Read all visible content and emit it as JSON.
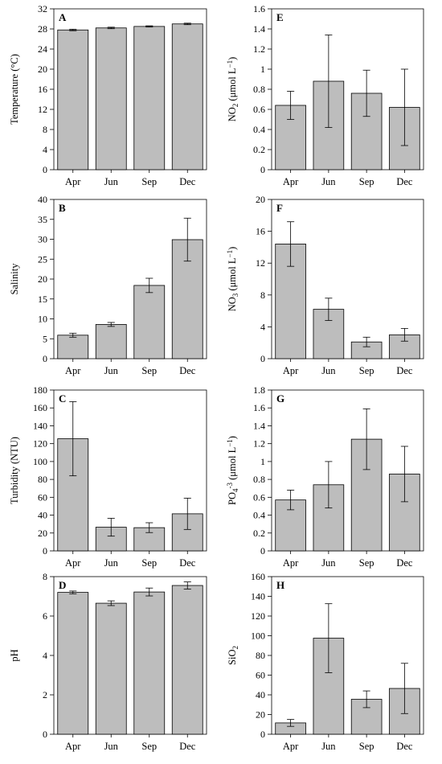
{
  "categories": [
    "Apr",
    "Jun",
    "Sep",
    "Dec"
  ],
  "chart_data": [
    {
      "type": "bar",
      "panel": "A",
      "title": "",
      "xlabel": "",
      "ylabel": "Temperature (°C)",
      "ylim": [
        0,
        32
      ],
      "yticks": [
        0,
        4,
        8,
        12,
        16,
        20,
        24,
        28,
        32
      ],
      "categories": [
        "Apr",
        "Jun",
        "Sep",
        "Dec"
      ],
      "values": [
        27.8,
        28.2,
        28.5,
        29.0
      ],
      "errors": [
        0.15,
        0.15,
        0.12,
        0.15
      ]
    },
    {
      "type": "bar",
      "panel": "B",
      "title": "",
      "xlabel": "",
      "ylabel": "Salinity",
      "ylim": [
        0,
        40
      ],
      "yticks": [
        0,
        5,
        10,
        15,
        20,
        25,
        30,
        35,
        40
      ],
      "categories": [
        "Apr",
        "Jun",
        "Sep",
        "Dec"
      ],
      "values": [
        5.9,
        8.6,
        18.4,
        29.9
      ],
      "errors": [
        0.5,
        0.5,
        1.8,
        5.4
      ]
    },
    {
      "type": "bar",
      "panel": "C",
      "title": "",
      "xlabel": "",
      "ylabel": "Turbidity (NTU)",
      "ylim": [
        0,
        180
      ],
      "yticks": [
        0,
        20,
        40,
        60,
        80,
        100,
        120,
        140,
        160,
        180
      ],
      "categories": [
        "Apr",
        "Jun",
        "Sep",
        "Dec"
      ],
      "values": [
        125.5,
        26.5,
        26.0,
        41.5
      ],
      "errors": [
        41.5,
        10.0,
        5.5,
        17.5
      ]
    },
    {
      "type": "bar",
      "panel": "D",
      "title": "",
      "xlabel": "",
      "ylabel": "pH",
      "ylim": [
        0,
        8
      ],
      "yticks": [
        0,
        2,
        4,
        6,
        8
      ],
      "categories": [
        "Apr",
        "Jun",
        "Sep",
        "Dec"
      ],
      "values": [
        7.2,
        6.65,
        7.22,
        7.55
      ],
      "errors": [
        0.07,
        0.12,
        0.2,
        0.18
      ]
    },
    {
      "type": "bar",
      "panel": "E",
      "title": "",
      "xlabel": "",
      "ylabel": "NO",
      "ylabel_sub": "2",
      "ylabel_rest": " (μmol L",
      "ylabel_sup": "−1",
      "ylabel_end": ")",
      "ylim": [
        0,
        1.6
      ],
      "yticks": [
        0,
        0.2,
        0.4,
        0.6,
        0.8,
        1,
        1.2,
        1.4,
        1.6
      ],
      "categories": [
        "Apr",
        "Jun",
        "Sep",
        "Dec"
      ],
      "values": [
        0.64,
        0.88,
        0.76,
        0.62
      ],
      "errors": [
        0.14,
        0.46,
        0.23,
        0.38
      ]
    },
    {
      "type": "bar",
      "panel": "F",
      "title": "",
      "xlabel": "",
      "ylabel": "NO",
      "ylabel_sub": "3",
      "ylabel_rest": " (μmol L",
      "ylabel_sup": "−1",
      "ylabel_end": ")",
      "ylim": [
        0,
        20
      ],
      "yticks": [
        0,
        4,
        8,
        12,
        16,
        20
      ],
      "categories": [
        "Apr",
        "Jun",
        "Sep",
        "Dec"
      ],
      "values": [
        14.4,
        6.2,
        2.1,
        3.0
      ],
      "errors": [
        2.8,
        1.4,
        0.6,
        0.8
      ]
    },
    {
      "type": "bar",
      "panel": "G",
      "title": "",
      "xlabel": "",
      "ylabel": "PO",
      "ylabel_sub": "4",
      "ylabel_sup0": "-3",
      "ylabel_rest": " (μmol L",
      "ylabel_sup": "−1",
      "ylabel_end": ")",
      "ylim": [
        0,
        1.8
      ],
      "yticks": [
        0,
        0.2,
        0.4,
        0.6,
        0.8,
        1,
        1.2,
        1.4,
        1.6,
        1.8
      ],
      "categories": [
        "Apr",
        "Jun",
        "Sep",
        "Dec"
      ],
      "values": [
        0.57,
        0.74,
        1.25,
        0.86
      ],
      "errors": [
        0.11,
        0.26,
        0.34,
        0.31
      ]
    },
    {
      "type": "bar",
      "panel": "H",
      "title": "",
      "xlabel": "",
      "ylabel": "SiO",
      "ylabel_sub": "2",
      "ylim": [
        0,
        160
      ],
      "yticks": [
        0,
        20,
        40,
        60,
        80,
        100,
        120,
        140,
        160
      ],
      "categories": [
        "Apr",
        "Jun",
        "Sep",
        "Dec"
      ],
      "values": [
        11.5,
        97.5,
        35.5,
        46.5
      ],
      "errors": [
        3.5,
        35.0,
        8.5,
        25.5
      ]
    }
  ]
}
